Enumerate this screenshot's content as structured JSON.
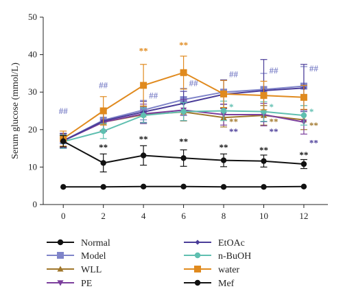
{
  "chart_data": {
    "type": "line",
    "ylabel": "Serum glucose (mmol/L)",
    "xlabel": "",
    "x": [
      0,
      2,
      4,
      6,
      8,
      10,
      12
    ],
    "xlim": [
      -1,
      13.2
    ],
    "ylim": [
      0,
      50
    ],
    "y_ticks": [
      0,
      10,
      20,
      30,
      40,
      50
    ],
    "grid": false,
    "legend_placement": "bottom",
    "series": [
      {
        "name": "Normal",
        "color": "#111111",
        "marker": "circle",
        "values": [
          4.7,
          4.7,
          4.8,
          4.8,
          4.7,
          4.7,
          4.8
        ],
        "errors": [
          0.1,
          0.1,
          0.1,
          0.1,
          0.1,
          0.1,
          0.1
        ]
      },
      {
        "name": "Model",
        "color": "#7f84c9",
        "marker": "square",
        "values": [
          17.0,
          22.5,
          25.2,
          28.0,
          30.0,
          30.7,
          31.6
        ],
        "errors": [
          2.0,
          2.8,
          2.6,
          3.0,
          3.3,
          4.3,
          5.2
        ]
      },
      {
        "name": "WLL",
        "color": "#a0762a",
        "marker": "triangle",
        "values": [
          17.1,
          22.0,
          24.0,
          24.7,
          23.2,
          23.8,
          22.6
        ],
        "errors": [
          1.8,
          2.2,
          2.3,
          2.4,
          2.5,
          2.6,
          2.6
        ]
      },
      {
        "name": "PE",
        "color": "#7b3e9c",
        "marker": "triangle-down",
        "values": [
          17.0,
          22.0,
          24.2,
          25.2,
          24.0,
          24.0,
          22.0
        ],
        "errors": [
          1.8,
          2.4,
          2.6,
          2.8,
          2.8,
          3.0,
          3.2
        ]
      },
      {
        "name": "EtOAc",
        "color": "#4a3c98",
        "marker": "diamond",
        "values": [
          17.0,
          22.3,
          24.7,
          27.0,
          29.4,
          30.4,
          31.1
        ],
        "errors": [
          2.0,
          2.8,
          2.8,
          3.2,
          3.8,
          8.3,
          6.3
        ]
      },
      {
        "name": "n-BuOH",
        "color": "#5fbfb0",
        "marker": "circle",
        "values": [
          16.8,
          19.6,
          23.8,
          24.8,
          25.0,
          24.8,
          23.8
        ],
        "errors": [
          1.8,
          2.0,
          2.0,
          2.4,
          2.6,
          2.6,
          2.6
        ]
      },
      {
        "name": "water",
        "color": "#e08a1e",
        "marker": "square",
        "values": [
          17.6,
          25.0,
          31.8,
          35.2,
          29.5,
          29.1,
          28.6
        ],
        "errors": [
          2.0,
          3.8,
          5.6,
          4.4,
          3.6,
          3.8,
          3.2
        ]
      },
      {
        "name": "Mef",
        "color": "#111111",
        "marker": "circle",
        "values": [
          16.9,
          11.1,
          13.1,
          12.4,
          11.8,
          11.6,
          10.8
        ],
        "errors": [
          1.5,
          2.4,
          2.6,
          2.2,
          1.7,
          1.6,
          1.2
        ]
      }
    ],
    "annotations": [
      {
        "text": "##",
        "x": 0,
        "y": 24.2,
        "color": "#7f84c9",
        "anchor": "center"
      },
      {
        "text": "##",
        "x": 2,
        "y": 31.0,
        "color": "#7f84c9",
        "anchor": "center"
      },
      {
        "text": "##",
        "x": 4,
        "y": 28.3,
        "color": "#7f84c9",
        "anchor": "right"
      },
      {
        "text": "##",
        "x": 6,
        "y": 31.6,
        "color": "#7f84c9",
        "anchor": "right"
      },
      {
        "text": "##",
        "x": 8,
        "y": 34.0,
        "color": "#7f84c9",
        "anchor": "right"
      },
      {
        "text": "##",
        "x": 10,
        "y": 35.0,
        "color": "#7f84c9",
        "anchor": "right"
      },
      {
        "text": "##",
        "x": 12,
        "y": 35.5,
        "color": "#7f84c9",
        "anchor": "right"
      },
      {
        "text": "**",
        "x": 4,
        "y": 40.2,
        "color": "#e08a1e",
        "anchor": "center"
      },
      {
        "text": "**",
        "x": 6,
        "y": 41.8,
        "color": "#e08a1e",
        "anchor": "center"
      },
      {
        "text": "*",
        "x": 8,
        "y": 25.3,
        "color": "#5fbfb0",
        "anchor": "right"
      },
      {
        "text": "**",
        "x": 8,
        "y": 21.3,
        "color": "#a0762a",
        "anchor": "right"
      },
      {
        "text": "**",
        "x": 8,
        "y": 18.7,
        "color": "#4a3c98",
        "anchor": "right"
      },
      {
        "text": "*",
        "x": 10,
        "y": 25.3,
        "color": "#5fbfb0",
        "anchor": "right"
      },
      {
        "text": "**",
        "x": 10,
        "y": 21.3,
        "color": "#a0762a",
        "anchor": "right"
      },
      {
        "text": "**",
        "x": 10,
        "y": 18.7,
        "color": "#4a3c98",
        "anchor": "right"
      },
      {
        "text": "*",
        "x": 12,
        "y": 24.0,
        "color": "#5fbfb0",
        "anchor": "right"
      },
      {
        "text": "**",
        "x": 12,
        "y": 20.3,
        "color": "#a0762a",
        "anchor": "right"
      },
      {
        "text": "**",
        "x": 12,
        "y": 15.7,
        "color": "#4a3c98",
        "anchor": "right"
      },
      {
        "text": "**",
        "x": 2,
        "y": 14.5,
        "color": "#111111",
        "anchor": "center"
      },
      {
        "text": "**",
        "x": 4,
        "y": 16.7,
        "color": "#111111",
        "anchor": "center"
      },
      {
        "text": "**",
        "x": 6,
        "y": 16.0,
        "color": "#111111",
        "anchor": "center"
      },
      {
        "text": "**",
        "x": 8,
        "y": 14.5,
        "color": "#111111",
        "anchor": "center"
      },
      {
        "text": "**",
        "x": 10,
        "y": 13.7,
        "color": "#111111",
        "anchor": "center"
      },
      {
        "text": "**",
        "x": 12,
        "y": 12.5,
        "color": "#111111",
        "anchor": "center"
      }
    ]
  }
}
